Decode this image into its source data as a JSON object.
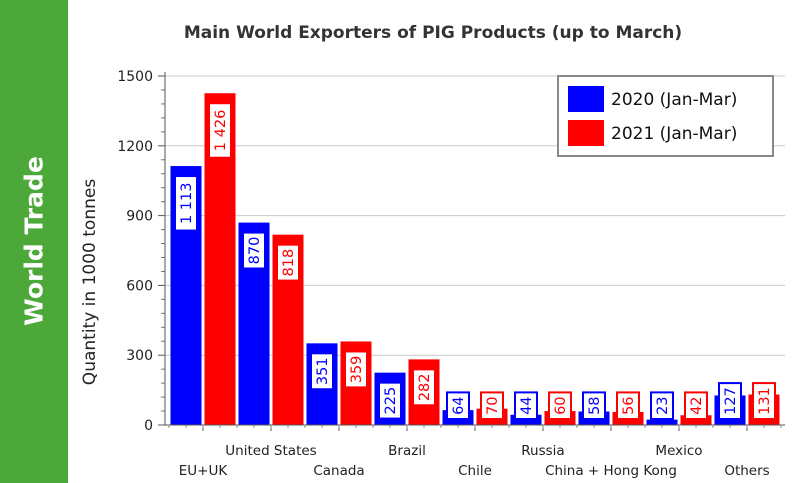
{
  "sidebar": {
    "label": "World Trade"
  },
  "colors": {
    "sidebar": "#4da83a",
    "series_2020": "#0000ff",
    "series_2021": "#ff0000"
  },
  "chart_data": {
    "type": "bar",
    "title": "Main World Exporters of PIG Products (up to March)",
    "ylabel": "Quantity in 1000 tonnes",
    "xlabel": "",
    "ylim": [
      0,
      1500
    ],
    "yticks": [
      0,
      300,
      600,
      900,
      1200,
      1500
    ],
    "categories": [
      "EU+UK",
      "United States",
      "Canada",
      "Brazil",
      "Chile",
      "Russia",
      "China + Hong Kong",
      "Mexico",
      "Others"
    ],
    "series": [
      {
        "name": "2020 (Jan-Mar)",
        "values": [
          1113,
          870,
          351,
          225,
          64,
          44,
          58,
          23,
          127
        ],
        "labels": [
          "1 113",
          "870",
          "351",
          "225",
          "64",
          "44",
          "58",
          "23",
          "127"
        ]
      },
      {
        "name": "2021 (Jan-Mar)",
        "values": [
          1426,
          818,
          359,
          282,
          70,
          60,
          56,
          42,
          131
        ],
        "labels": [
          "1 426",
          "818",
          "359",
          "282",
          "70",
          "60",
          "56",
          "42",
          "131"
        ]
      }
    ],
    "legend": "top-right",
    "grid": true
  }
}
